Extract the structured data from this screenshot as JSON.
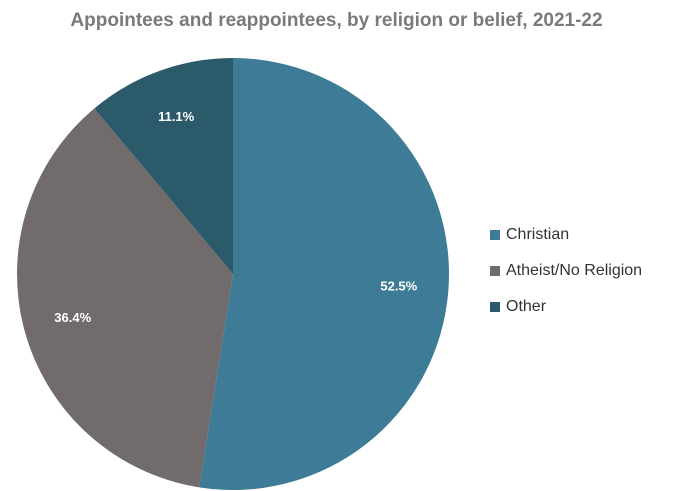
{
  "chart_data": {
    "type": "pie",
    "title": "Appointees and reappointees, by religion or belief,  2021-22",
    "slices": [
      {
        "name": "Christian",
        "value": 52.5,
        "label": "52.5%",
        "color": "#3e7b97"
      },
      {
        "name": "Atheist/No Religion",
        "value": 36.4,
        "label": "36.4%",
        "color": "#716b6b"
      },
      {
        "name": "Other",
        "value": 11.1,
        "label": "11.1%",
        "color": "#2b5a6a"
      }
    ],
    "legend_position": "right"
  }
}
